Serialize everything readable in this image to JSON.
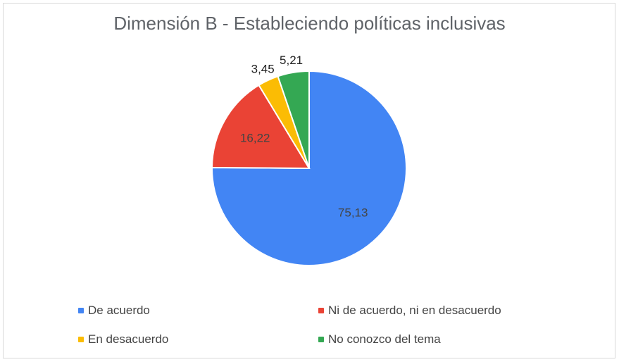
{
  "chart_data": {
    "type": "pie",
    "title": "Dimensión B - Estableciendo políticas inclusivas",
    "slices": [
      {
        "label": "De acuerdo",
        "value": 75.13,
        "display": "75,13",
        "color": "#4285f4",
        "label_color": "#444444"
      },
      {
        "label": "Ni de acuerdo, ni en desacuerdo",
        "value": 16.22,
        "display": "16,22",
        "color": "#ea4335",
        "label_color": "#444444"
      },
      {
        "label": "En desacuerdo",
        "value": 3.45,
        "display": "3,45",
        "color": "#fbbc04",
        "label_color": "#222222"
      },
      {
        "label": "No conozco del tema",
        "value": 5.21,
        "display": "5,21",
        "color": "#34a853",
        "label_color": "#222222"
      }
    ],
    "legend_position": "bottom"
  }
}
